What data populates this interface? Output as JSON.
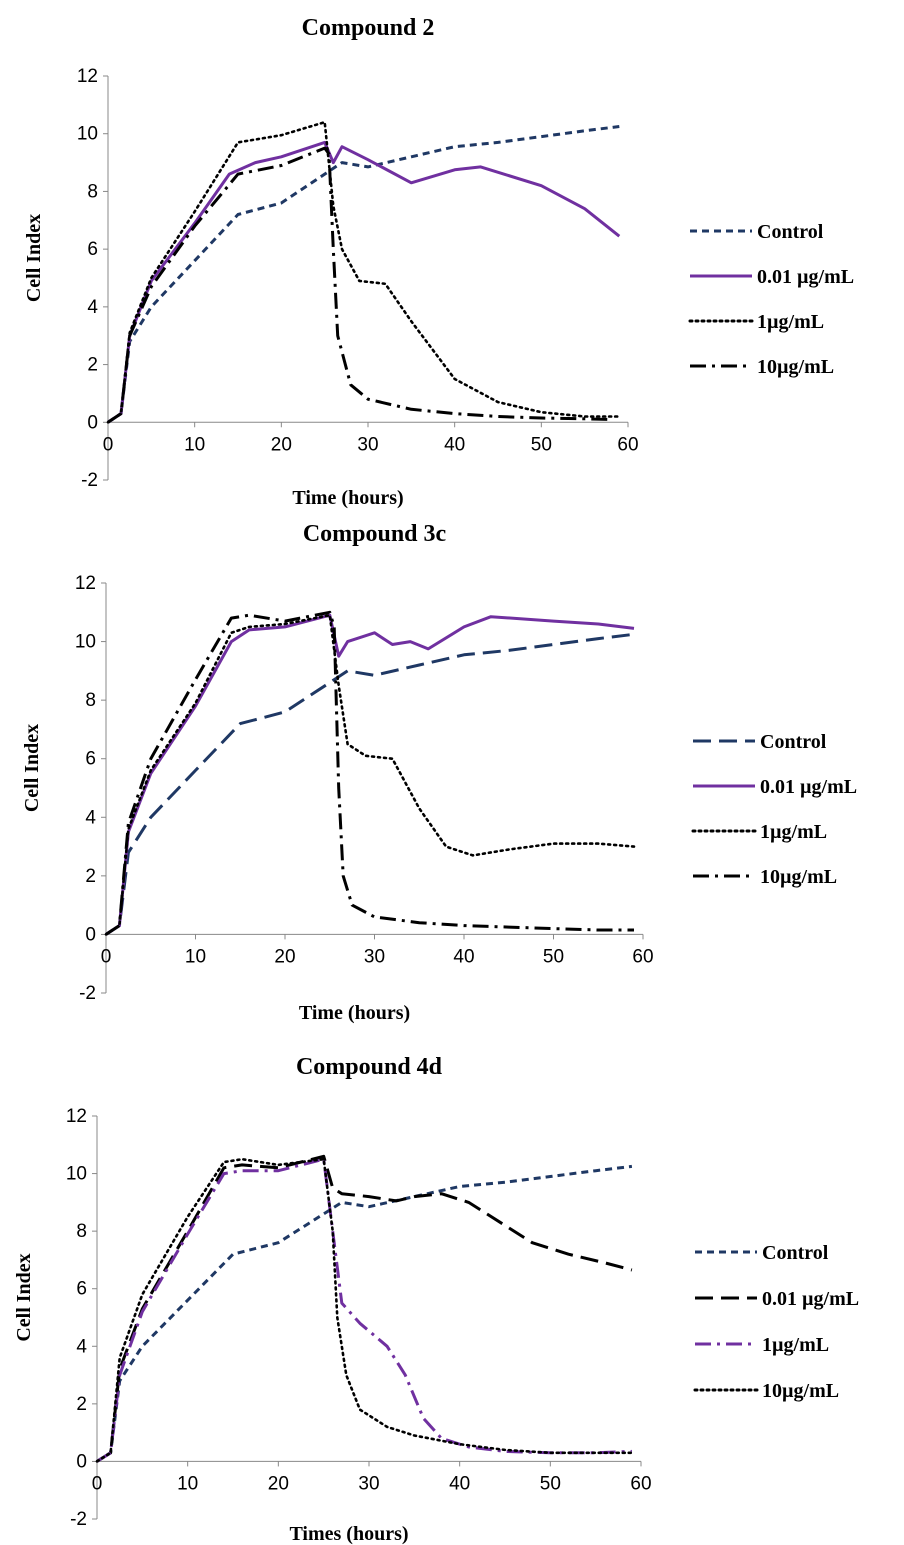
{
  "chart_data": [
    {
      "type": "line",
      "title": "Compound 2",
      "xlabel": "Time (hours)",
      "ylabel": "Cell Index",
      "xlim": [
        0,
        60
      ],
      "ylim": [
        -2,
        12
      ],
      "x_ticks": [
        0,
        10,
        20,
        30,
        40,
        50,
        60
      ],
      "y_ticks": [
        -2,
        0,
        2,
        4,
        6,
        8,
        10,
        12
      ],
      "legend_position": "right",
      "series": [
        {
          "name": "Control",
          "color": "#1f3864",
          "dash": "short-dash",
          "points": [
            [
              0,
              0
            ],
            [
              1.5,
              0.3
            ],
            [
              2.5,
              2.8
            ],
            [
              5,
              4
            ],
            [
              10,
              5.6
            ],
            [
              15,
              7.2
            ],
            [
              20,
              7.6
            ],
            [
              25,
              8.6
            ],
            [
              27,
              9
            ],
            [
              30,
              8.85
            ],
            [
              35,
              9.2
            ],
            [
              40,
              9.55
            ],
            [
              45,
              9.7
            ],
            [
              50,
              9.9
            ],
            [
              55,
              10.1
            ],
            [
              59,
              10.25
            ]
          ]
        },
        {
          "name": "0.01 µg/mL",
          "color": "#7030a0",
          "dash": "solid",
          "points": [
            [
              0,
              0
            ],
            [
              1.5,
              0.3
            ],
            [
              2.5,
              3
            ],
            [
              5,
              4.9
            ],
            [
              10,
              6.9
            ],
            [
              14,
              8.6
            ],
            [
              17,
              9
            ],
            [
              20,
              9.2
            ],
            [
              25,
              9.7
            ],
            [
              26,
              9
            ],
            [
              27,
              9.55
            ],
            [
              30,
              9.1
            ],
            [
              35,
              8.3
            ],
            [
              40,
              8.75
            ],
            [
              43,
              8.85
            ],
            [
              50,
              8.2
            ],
            [
              55,
              7.4
            ],
            [
              59,
              6.45
            ]
          ]
        },
        {
          "name": "1µg/mL",
          "color": "#000000",
          "dash": "dotted",
          "points": [
            [
              0,
              0
            ],
            [
              1.5,
              0.3
            ],
            [
              2.5,
              3.1
            ],
            [
              5,
              5
            ],
            [
              10,
              7.3
            ],
            [
              15,
              9.7
            ],
            [
              20,
              9.95
            ],
            [
              25,
              10.4
            ],
            [
              26,
              7.5
            ],
            [
              27,
              6
            ],
            [
              29,
              4.9
            ],
            [
              32,
              4.8
            ],
            [
              35,
              3.5
            ],
            [
              40,
              1.5
            ],
            [
              45,
              0.7
            ],
            [
              50,
              0.35
            ],
            [
              55,
              0.2
            ],
            [
              59,
              0.2
            ]
          ]
        },
        {
          "name": "10µg/mL",
          "color": "#000000",
          "dash": "dash-dot",
          "points": [
            [
              0,
              0
            ],
            [
              1.5,
              0.3
            ],
            [
              2.5,
              3
            ],
            [
              5,
              4.7
            ],
            [
              10,
              6.8
            ],
            [
              15,
              8.6
            ],
            [
              20,
              8.9
            ],
            [
              25,
              9.5
            ],
            [
              25.5,
              9.3
            ],
            [
              26,
              6
            ],
            [
              26.5,
              3
            ],
            [
              28,
              1.3
            ],
            [
              30,
              0.8
            ],
            [
              35,
              0.45
            ],
            [
              40,
              0.3
            ],
            [
              45,
              0.2
            ],
            [
              50,
              0.15
            ],
            [
              55,
              0.12
            ],
            [
              58,
              0.1
            ]
          ]
        }
      ]
    },
    {
      "type": "line",
      "title": "Compound 3c",
      "xlabel": "Time (hours)",
      "ylabel": "Cell Index",
      "xlim": [
        0,
        60
      ],
      "ylim": [
        -2,
        12
      ],
      "x_ticks": [
        0,
        10,
        20,
        30,
        40,
        50,
        60
      ],
      "y_ticks": [
        -2,
        0,
        2,
        4,
        6,
        8,
        10,
        12
      ],
      "legend_position": "right",
      "series": [
        {
          "name": "Control",
          "color": "#1f3864",
          "dash": "long-dash",
          "points": [
            [
              0,
              0
            ],
            [
              1.5,
              0.3
            ],
            [
              2.5,
              2.8
            ],
            [
              5,
              4
            ],
            [
              10,
              5.6
            ],
            [
              15,
              7.2
            ],
            [
              20,
              7.6
            ],
            [
              25,
              8.6
            ],
            [
              27,
              9
            ],
            [
              30,
              8.85
            ],
            [
              35,
              9.2
            ],
            [
              40,
              9.55
            ],
            [
              45,
              9.7
            ],
            [
              50,
              9.9
            ],
            [
              55,
              10.1
            ],
            [
              59,
              10.25
            ]
          ]
        },
        {
          "name": "0.01 µg/mL",
          "color": "#7030a0",
          "dash": "solid",
          "points": [
            [
              0,
              0
            ],
            [
              1.5,
              0.3
            ],
            [
              2.5,
              3.5
            ],
            [
              5,
              5.5
            ],
            [
              10,
              7.8
            ],
            [
              14,
              10
            ],
            [
              16,
              10.4
            ],
            [
              20,
              10.5
            ],
            [
              25,
              10.9
            ],
            [
              26,
              9.5
            ],
            [
              27,
              10
            ],
            [
              30,
              10.3
            ],
            [
              32,
              9.9
            ],
            [
              34,
              10
            ],
            [
              36,
              9.75
            ],
            [
              40,
              10.5
            ],
            [
              43,
              10.85
            ],
            [
              50,
              10.7
            ],
            [
              55,
              10.6
            ],
            [
              59,
              10.45
            ]
          ]
        },
        {
          "name": "1µg/mL",
          "color": "#000000",
          "dash": "dotted",
          "points": [
            [
              0,
              0
            ],
            [
              1.5,
              0.3
            ],
            [
              2.5,
              3.6
            ],
            [
              5,
              5.6
            ],
            [
              10,
              7.9
            ],
            [
              14,
              10.3
            ],
            [
              16,
              10.5
            ],
            [
              20,
              10.6
            ],
            [
              25,
              10.9
            ],
            [
              26,
              8.5
            ],
            [
              27,
              6.5
            ],
            [
              29,
              6.1
            ],
            [
              32,
              6
            ],
            [
              35,
              4.3
            ],
            [
              38,
              3
            ],
            [
              41,
              2.7
            ],
            [
              45,
              2.9
            ],
            [
              50,
              3.1
            ],
            [
              55,
              3.1
            ],
            [
              59,
              3
            ]
          ]
        },
        {
          "name": "10µg/mL",
          "color": "#000000",
          "dash": "dash-dot",
          "points": [
            [
              0,
              0
            ],
            [
              1.5,
              0.3
            ],
            [
              2.5,
              3.8
            ],
            [
              5,
              6
            ],
            [
              10,
              8.7
            ],
            [
              14,
              10.8
            ],
            [
              16,
              10.9
            ],
            [
              20,
              10.7
            ],
            [
              25,
              11
            ],
            [
              25.5,
              10.5
            ],
            [
              26,
              5
            ],
            [
              26.5,
              2
            ],
            [
              27.5,
              1
            ],
            [
              30,
              0.6
            ],
            [
              35,
              0.4
            ],
            [
              40,
              0.3
            ],
            [
              45,
              0.25
            ],
            [
              50,
              0.2
            ],
            [
              55,
              0.15
            ],
            [
              59,
              0.15
            ]
          ]
        }
      ]
    },
    {
      "type": "line",
      "title": "Compound 4d",
      "xlabel": "Times (hours)",
      "ylabel": "Cell Index",
      "xlim": [
        0,
        60
      ],
      "ylim": [
        -2,
        12
      ],
      "x_ticks": [
        0,
        10,
        20,
        30,
        40,
        50,
        60
      ],
      "y_ticks": [
        -2,
        0,
        2,
        4,
        6,
        8,
        10,
        12
      ],
      "legend_position": "right",
      "series": [
        {
          "name": "Control",
          "color": "#1f3864",
          "dash": "short-dash",
          "points": [
            [
              0,
              0
            ],
            [
              1.5,
              0.3
            ],
            [
              2.5,
              2.8
            ],
            [
              5,
              4
            ],
            [
              10,
              5.6
            ],
            [
              15,
              7.2
            ],
            [
              20,
              7.6
            ],
            [
              25,
              8.6
            ],
            [
              27,
              9
            ],
            [
              30,
              8.85
            ],
            [
              35,
              9.2
            ],
            [
              40,
              9.55
            ],
            [
              45,
              9.7
            ],
            [
              50,
              9.9
            ],
            [
              55,
              10.1
            ],
            [
              59,
              10.25
            ]
          ]
        },
        {
          "name": "0.01 µg/mL",
          "color": "#000000",
          "dash": "long-dash",
          "points": [
            [
              0,
              0
            ],
            [
              1.5,
              0.3
            ],
            [
              2.5,
              3.2
            ],
            [
              5,
              5.3
            ],
            [
              10,
              8
            ],
            [
              14,
              10.2
            ],
            [
              16,
              10.3
            ],
            [
              20,
              10.2
            ],
            [
              25,
              10.6
            ],
            [
              26,
              9.5
            ],
            [
              27,
              9.3
            ],
            [
              30,
              9.2
            ],
            [
              33,
              9.05
            ],
            [
              35,
              9.2
            ],
            [
              38,
              9.3
            ],
            [
              41,
              9
            ],
            [
              45,
              8.2
            ],
            [
              48,
              7.6
            ],
            [
              52,
              7.2
            ],
            [
              56,
              6.9
            ],
            [
              59,
              6.65
            ]
          ]
        },
        {
          "name": "1µg/mL",
          "color": "#7030a0",
          "dash": "dash-dot",
          "points": [
            [
              0,
              0
            ],
            [
              1.5,
              0.3
            ],
            [
              2.5,
              3
            ],
            [
              5,
              5.2
            ],
            [
              10,
              7.9
            ],
            [
              14,
              10
            ],
            [
              16,
              10.1
            ],
            [
              20,
              10.1
            ],
            [
              25,
              10.5
            ],
            [
              26,
              8
            ],
            [
              27,
              5.5
            ],
            [
              29,
              4.8
            ],
            [
              32,
              4
            ],
            [
              34,
              3
            ],
            [
              36,
              1.5
            ],
            [
              38,
              0.8
            ],
            [
              41,
              0.5
            ],
            [
              45,
              0.35
            ],
            [
              50,
              0.3
            ],
            [
              55,
              0.3
            ],
            [
              59,
              0.35
            ]
          ]
        },
        {
          "name": "10µg/mL",
          "color": "#000000",
          "dash": "dotted",
          "points": [
            [
              0,
              0
            ],
            [
              1.5,
              0.3
            ],
            [
              2.5,
              3.6
            ],
            [
              5,
              5.8
            ],
            [
              10,
              8.5
            ],
            [
              14,
              10.4
            ],
            [
              16,
              10.5
            ],
            [
              20,
              10.3
            ],
            [
              25,
              10.5
            ],
            [
              26,
              8
            ],
            [
              26.5,
              5
            ],
            [
              27.5,
              3
            ],
            [
              29,
              1.8
            ],
            [
              32,
              1.2
            ],
            [
              35,
              0.9
            ],
            [
              40,
              0.6
            ],
            [
              45,
              0.4
            ],
            [
              50,
              0.3
            ],
            [
              55,
              0.3
            ],
            [
              59,
              0.3
            ]
          ]
        }
      ]
    }
  ]
}
